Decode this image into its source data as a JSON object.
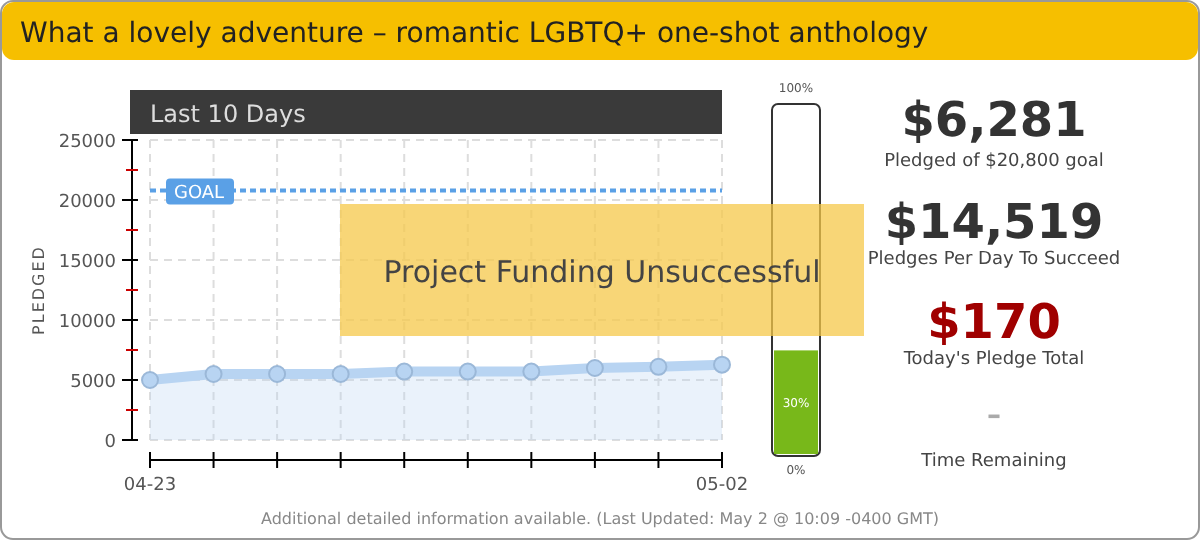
{
  "chart_data": {
    "type": "area",
    "title": "What a lovely adventure – romantic LGBTQ+ one-shot anthology",
    "subtitle": "Last 10 Days",
    "ylabel": "PLEDGED",
    "categories": [
      "04-23",
      null,
      null,
      null,
      null,
      null,
      null,
      null,
      null,
      "05-02"
    ],
    "series": [
      {
        "color": "#b8d4f2",
        "values": [
          5000,
          5500,
          5500,
          5500,
          5700,
          5700,
          5700,
          6000,
          6100,
          6281
        ]
      }
    ],
    "ylim": [
      0,
      25000
    ],
    "yticks": [
      0,
      {
        "value": 2500,
        "label": null
      },
      5000,
      {
        "value": 7500,
        "label": null
      },
      10000,
      {
        "value": 12500,
        "label": null
      },
      15000,
      {
        "value": 17500,
        "label": null
      },
      20000,
      {
        "value": 22500,
        "label": null
      },
      25000
    ],
    "grid": true,
    "marker": "circle",
    "ref_lines": [
      {
        "axis": "y",
        "value": 20800,
        "label": "GOAL",
        "color": "#5aa0e6",
        "line_style": "dotted"
      }
    ],
    "annotations": [
      "Project Funding Unsuccessful",
      "100%",
      "30%",
      "0%",
      "$6,281",
      "Pledged of $20,800 goal",
      "$14,519",
      "Pledges Per Day To Succeed",
      "$170",
      "Today's Pledge Total",
      "–",
      "Time Remaining",
      "Additional detailed information available. (Last Updated: May 2 @ 10:09 -0400 GMT)"
    ]
  }
}
